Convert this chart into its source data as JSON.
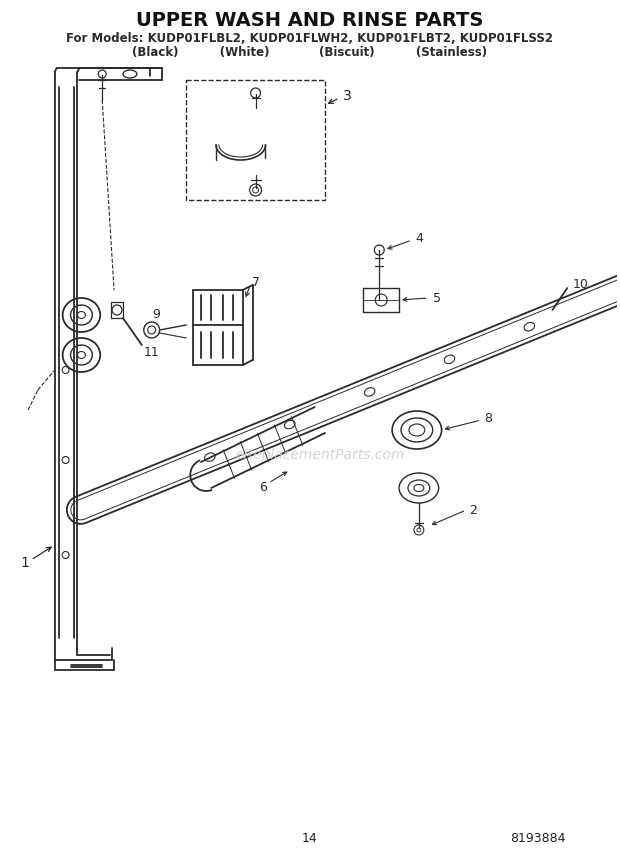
{
  "title": "UPPER WASH AND RINSE PARTS",
  "subtitle1": "For Models: KUDP01FLBL2, KUDP01FLWH2, KUDP01FLBT2, KUDP01FLSS2",
  "subtitle2": "(Black)          (White)            (Biscuit)          (Stainless)",
  "page_number": "14",
  "part_number": "8193884",
  "bg_color": "#ffffff",
  "line_color": "#2a2a2a",
  "watermark": "eReplacementParts.com",
  "title_fontsize": 14,
  "subtitle_fontsize": 8.5
}
